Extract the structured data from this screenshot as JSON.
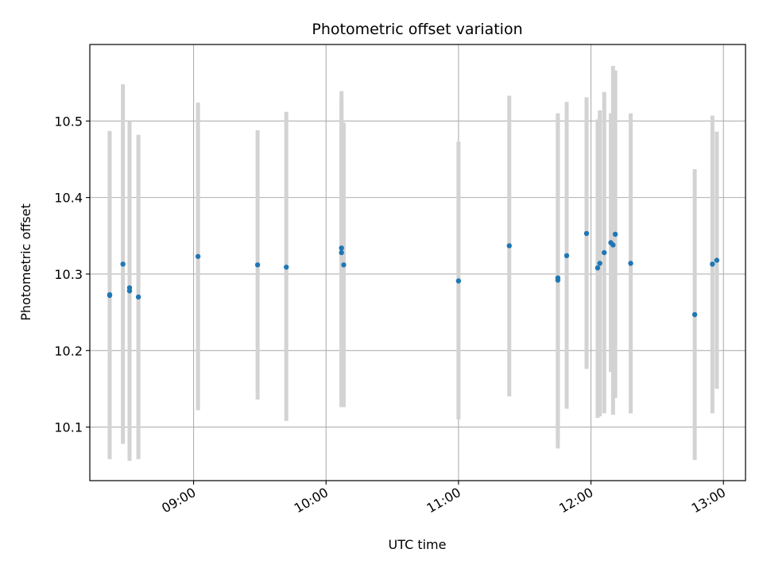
{
  "chart_data": {
    "type": "scatter",
    "title": "Photometric offset variation",
    "xlabel": "UTC time",
    "ylabel": "Photometric offset",
    "x_ticks": [
      "09:00",
      "10:00",
      "11:00",
      "12:00",
      "13:00"
    ],
    "y_ticks": [
      "10.1",
      "10.2",
      "10.3",
      "10.4",
      "10.5"
    ],
    "xlim": [
      "08:13",
      "13:10"
    ],
    "ylim": [
      10.03,
      10.6
    ],
    "grid": true,
    "colors": {
      "point": "#1f77b4",
      "errorbar": "#d3d3d3",
      "grid": "#b0b0b0"
    },
    "points": [
      {
        "x": "08:22",
        "y": 10.273,
        "err_low": 10.065,
        "err_high": 10.48
      },
      {
        "x": "08:22",
        "y": 10.272,
        "err_low": 10.058,
        "err_high": 10.487
      },
      {
        "x": "08:28",
        "y": 10.313,
        "err_low": 10.078,
        "err_high": 10.548
      },
      {
        "x": "08:31",
        "y": 10.278,
        "err_low": 10.056,
        "err_high": 10.5
      },
      {
        "x": "08:31",
        "y": 10.282,
        "err_low": 10.08,
        "err_high": 10.484
      },
      {
        "x": "08:35",
        "y": 10.27,
        "err_low": 10.058,
        "err_high": 10.482
      },
      {
        "x": "09:02",
        "y": 10.323,
        "err_low": 10.122,
        "err_high": 10.524
      },
      {
        "x": "09:29",
        "y": 10.312,
        "err_low": 10.136,
        "err_high": 10.488
      },
      {
        "x": "09:42",
        "y": 10.309,
        "err_low": 10.108,
        "err_high": 10.512
      },
      {
        "x": "10:07",
        "y": 10.334,
        "err_low": 10.128,
        "err_high": 10.539
      },
      {
        "x": "10:07",
        "y": 10.328,
        "err_low": 10.126,
        "err_high": 10.53
      },
      {
        "x": "10:08",
        "y": 10.312,
        "err_low": 10.126,
        "err_high": 10.498
      },
      {
        "x": "11:00",
        "y": 10.291,
        "err_low": 10.11,
        "err_high": 10.473
      },
      {
        "x": "11:23",
        "y": 10.337,
        "err_low": 10.14,
        "err_high": 10.533
      },
      {
        "x": "11:45",
        "y": 10.292,
        "err_low": 10.072,
        "err_high": 10.51
      },
      {
        "x": "11:45",
        "y": 10.295,
        "err_low": 10.08,
        "err_high": 10.505
      },
      {
        "x": "11:49",
        "y": 10.324,
        "err_low": 10.124,
        "err_high": 10.525
      },
      {
        "x": "11:58",
        "y": 10.353,
        "err_low": 10.176,
        "err_high": 10.531
      },
      {
        "x": "12:03",
        "y": 10.308,
        "err_low": 10.112,
        "err_high": 10.502
      },
      {
        "x": "12:04",
        "y": 10.314,
        "err_low": 10.114,
        "err_high": 10.514
      },
      {
        "x": "12:06",
        "y": 10.328,
        "err_low": 10.118,
        "err_high": 10.538
      },
      {
        "x": "12:09",
        "y": 10.341,
        "err_low": 10.172,
        "err_high": 10.51
      },
      {
        "x": "12:10",
        "y": 10.338,
        "err_low": 10.116,
        "err_high": 10.572
      },
      {
        "x": "12:11",
        "y": 10.352,
        "err_low": 10.138,
        "err_high": 10.566
      },
      {
        "x": "12:18",
        "y": 10.314,
        "err_low": 10.118,
        "err_high": 10.51
      },
      {
        "x": "12:47",
        "y": 10.247,
        "err_low": 10.057,
        "err_high": 10.437
      },
      {
        "x": "12:55",
        "y": 10.313,
        "err_low": 10.118,
        "err_high": 10.507
      },
      {
        "x": "12:57",
        "y": 10.318,
        "err_low": 10.15,
        "err_high": 10.486
      }
    ]
  }
}
